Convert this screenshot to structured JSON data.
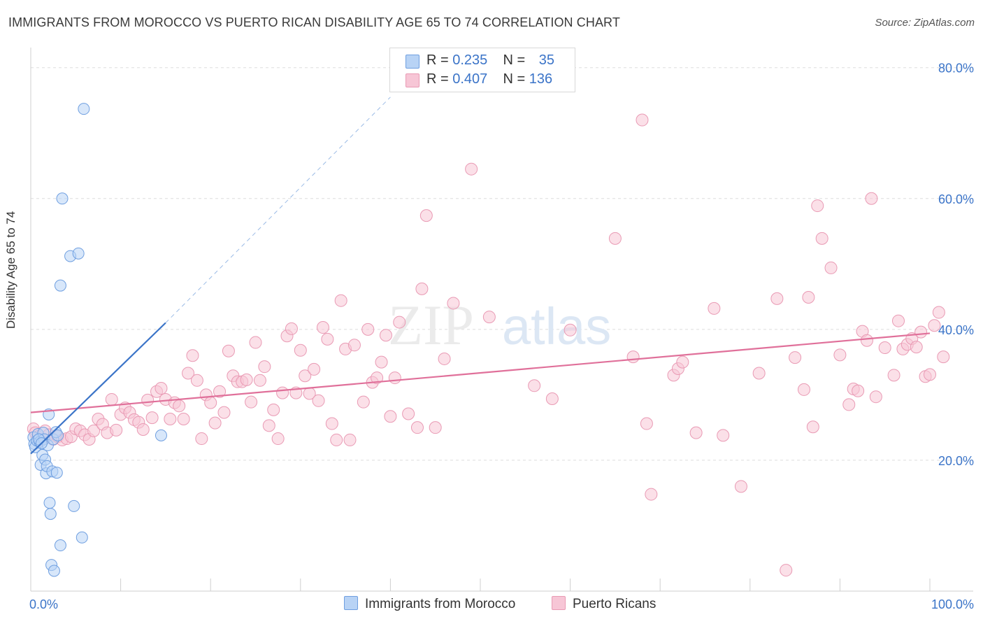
{
  "title": "IMMIGRANTS FROM MOROCCO VS PUERTO RICAN DISABILITY AGE 65 TO 74 CORRELATION CHART",
  "source": "Source: ZipAtlas.com",
  "watermark": {
    "zip": "ZIP",
    "atlas": "atlas"
  },
  "legend": {
    "blue": {
      "r_label": "R =",
      "r_value": "0.235",
      "n_label": "N =",
      "n_value": "35"
    },
    "pink": {
      "r_label": "R =",
      "r_value": "0.407",
      "n_label": "N =",
      "n_value": "136"
    }
  },
  "colors": {
    "blue": "#3b74c8",
    "blue_fill": "#b8d3f5",
    "pink": "#e0709a",
    "pink_fill": "#f7c6d6",
    "grid": "#dddddd",
    "tick_text": "#3b74c8"
  },
  "chart_data": {
    "type": "scatter",
    "title": "IMMIGRANTS FROM MOROCCO VS PUERTO RICAN DISABILITY AGE 65 TO 74 CORRELATION CHART",
    "xlabel": "",
    "ylabel": "Disability Age 65 to 74",
    "xlim": [
      0,
      100
    ],
    "ylim": [
      0,
      82
    ],
    "x_tick_labels": [
      {
        "value": 0,
        "label": "0.0%"
      },
      {
        "value": 100,
        "label": "100.0%"
      }
    ],
    "y_tick_labels": [
      {
        "value": 20,
        "label": "20.0%"
      },
      {
        "value": 40,
        "label": "40.0%"
      },
      {
        "value": 60,
        "label": "60.0%"
      },
      {
        "value": 80,
        "label": "80.0%"
      }
    ],
    "grid": true,
    "legend_position": "top-center",
    "series": [
      {
        "name": "Immigrants from Morocco",
        "color": "#3b74c8",
        "points": [
          [
            0.3,
            23.5
          ],
          [
            0.4,
            22.5
          ],
          [
            0.5,
            22.0
          ],
          [
            0.7,
            23.0
          ],
          [
            0.8,
            24.0
          ],
          [
            1.0,
            22.8
          ],
          [
            1.1,
            19.3
          ],
          [
            1.3,
            20.8
          ],
          [
            1.4,
            24.2
          ],
          [
            1.5,
            23.2
          ],
          [
            1.6,
            20.1
          ],
          [
            1.7,
            18.0
          ],
          [
            1.8,
            19.1
          ],
          [
            1.9,
            22.3
          ],
          [
            2.0,
            27.0
          ],
          [
            2.1,
            13.5
          ],
          [
            2.2,
            11.8
          ],
          [
            2.3,
            4.0
          ],
          [
            2.4,
            18.3
          ],
          [
            2.5,
            23.2
          ],
          [
            2.6,
            3.1
          ],
          [
            2.8,
            24.3
          ],
          [
            2.9,
            18.1
          ],
          [
            3.0,
            23.8
          ],
          [
            3.3,
            7.0
          ],
          [
            3.5,
            60.0
          ],
          [
            3.3,
            46.7
          ],
          [
            4.4,
            51.2
          ],
          [
            4.8,
            13.0
          ],
          [
            5.3,
            51.6
          ],
          [
            5.7,
            8.2
          ],
          [
            5.9,
            73.7
          ],
          [
            14.5,
            23.8
          ],
          [
            0.9,
            23.2
          ],
          [
            1.2,
            22.6
          ]
        ],
        "trend": {
          "x": [
            0,
            15
          ],
          "y": [
            21.0,
            41.0
          ],
          "dashed_extension_to": [
            40,
            75.5
          ]
        }
      },
      {
        "name": "Puerto Ricans",
        "color": "#e0709a",
        "points": [
          [
            0.3,
            24.8
          ],
          [
            0.5,
            24.2
          ],
          [
            0.8,
            23.6
          ],
          [
            1.2,
            23.1
          ],
          [
            1.6,
            24.5
          ],
          [
            2.0,
            23.9
          ],
          [
            2.5,
            23.2
          ],
          [
            3.0,
            23.6
          ],
          [
            3.5,
            23.1
          ],
          [
            4.0,
            23.3
          ],
          [
            4.5,
            23.6
          ],
          [
            5.0,
            24.8
          ],
          [
            5.5,
            24.5
          ],
          [
            6.0,
            23.9
          ],
          [
            6.5,
            23.2
          ],
          [
            7.0,
            24.5
          ],
          [
            7.5,
            26.3
          ],
          [
            8.0,
            25.5
          ],
          [
            8.5,
            24.2
          ],
          [
            9.0,
            29.3
          ],
          [
            9.5,
            24.6
          ],
          [
            10.0,
            27.0
          ],
          [
            10.5,
            28.0
          ],
          [
            11.0,
            27.3
          ],
          [
            11.5,
            26.2
          ],
          [
            12.0,
            25.8
          ],
          [
            12.5,
            24.7
          ],
          [
            13.0,
            29.2
          ],
          [
            13.5,
            26.5
          ],
          [
            14.0,
            30.5
          ],
          [
            14.5,
            31.0
          ],
          [
            15.0,
            29.3
          ],
          [
            15.5,
            26.3
          ],
          [
            16.0,
            28.8
          ],
          [
            16.5,
            28.3
          ],
          [
            17.0,
            26.3
          ],
          [
            17.5,
            33.3
          ],
          [
            18.0,
            36.0
          ],
          [
            18.5,
            32.2
          ],
          [
            19.0,
            23.3
          ],
          [
            19.5,
            30.0
          ],
          [
            20.0,
            28.8
          ],
          [
            20.5,
            25.7
          ],
          [
            21.0,
            30.5
          ],
          [
            21.5,
            27.3
          ],
          [
            22.0,
            36.7
          ],
          [
            22.5,
            32.9
          ],
          [
            23.0,
            32.0
          ],
          [
            23.5,
            32.0
          ],
          [
            24.0,
            32.3
          ],
          [
            24.5,
            28.9
          ],
          [
            25.0,
            38.0
          ],
          [
            25.5,
            32.2
          ],
          [
            26.0,
            34.3
          ],
          [
            26.5,
            25.3
          ],
          [
            27.0,
            27.7
          ],
          [
            27.5,
            23.3
          ],
          [
            28.0,
            30.3
          ],
          [
            28.5,
            39.0
          ],
          [
            29.0,
            40.1
          ],
          [
            29.5,
            30.3
          ],
          [
            30.0,
            36.8
          ],
          [
            30.5,
            32.9
          ],
          [
            31.0,
            30.2
          ],
          [
            31.5,
            33.9
          ],
          [
            32.0,
            29.1
          ],
          [
            32.5,
            40.3
          ],
          [
            33.0,
            38.5
          ],
          [
            33.5,
            25.6
          ],
          [
            34.0,
            23.1
          ],
          [
            34.5,
            44.4
          ],
          [
            35.0,
            37.0
          ],
          [
            35.5,
            23.1
          ],
          [
            36.0,
            37.6
          ],
          [
            37.0,
            28.9
          ],
          [
            37.5,
            40.0
          ],
          [
            38.0,
            31.9
          ],
          [
            38.5,
            32.6
          ],
          [
            39.0,
            35.0
          ],
          [
            39.5,
            39.1
          ],
          [
            40.0,
            26.7
          ],
          [
            40.5,
            32.6
          ],
          [
            41.0,
            41.1
          ],
          [
            42.0,
            27.1
          ],
          [
            43.0,
            25.0
          ],
          [
            43.5,
            46.2
          ],
          [
            44.0,
            57.4
          ],
          [
            45.0,
            25.0
          ],
          [
            46.0,
            35.5
          ],
          [
            47.0,
            44.0
          ],
          [
            49.0,
            64.5
          ],
          [
            51.0,
            41.9
          ],
          [
            56.0,
            31.4
          ],
          [
            58.0,
            29.4
          ],
          [
            60.0,
            39.9
          ],
          [
            65.0,
            53.9
          ],
          [
            67.0,
            35.8
          ],
          [
            68.0,
            72.0
          ],
          [
            68.5,
            25.6
          ],
          [
            69.0,
            14.8
          ],
          [
            71.5,
            33.0
          ],
          [
            72.0,
            34.0
          ],
          [
            72.5,
            35.0
          ],
          [
            74.0,
            24.2
          ],
          [
            76.0,
            43.2
          ],
          [
            77.0,
            23.8
          ],
          [
            79.0,
            16.0
          ],
          [
            81.0,
            33.3
          ],
          [
            83.0,
            44.7
          ],
          [
            84.0,
            3.2
          ],
          [
            85.0,
            35.7
          ],
          [
            86.0,
            30.8
          ],
          [
            86.5,
            44.9
          ],
          [
            87.0,
            25.1
          ],
          [
            87.5,
            58.9
          ],
          [
            88.0,
            53.9
          ],
          [
            89.0,
            49.4
          ],
          [
            90.0,
            36.1
          ],
          [
            91.0,
            28.5
          ],
          [
            91.5,
            30.9
          ],
          [
            92.0,
            30.6
          ],
          [
            92.5,
            39.7
          ],
          [
            93.0,
            38.3
          ],
          [
            93.5,
            60.0
          ],
          [
            94.0,
            29.7
          ],
          [
            95.0,
            37.2
          ],
          [
            96.0,
            33.0
          ],
          [
            96.5,
            41.3
          ],
          [
            97.0,
            37.0
          ],
          [
            97.5,
            37.7
          ],
          [
            98.0,
            38.6
          ],
          [
            98.5,
            37.3
          ],
          [
            99.0,
            39.6
          ],
          [
            99.5,
            32.8
          ],
          [
            100.0,
            33.1
          ],
          [
            100.5,
            40.6
          ],
          [
            101.0,
            42.6
          ],
          [
            101.5,
            35.8
          ]
        ],
        "trend": {
          "x": [
            0,
            100
          ],
          "y": [
            27.3,
            39.4
          ]
        }
      }
    ]
  },
  "bottom_legend": {
    "blue": "Immigrants from Morocco",
    "pink": "Puerto Ricans"
  }
}
